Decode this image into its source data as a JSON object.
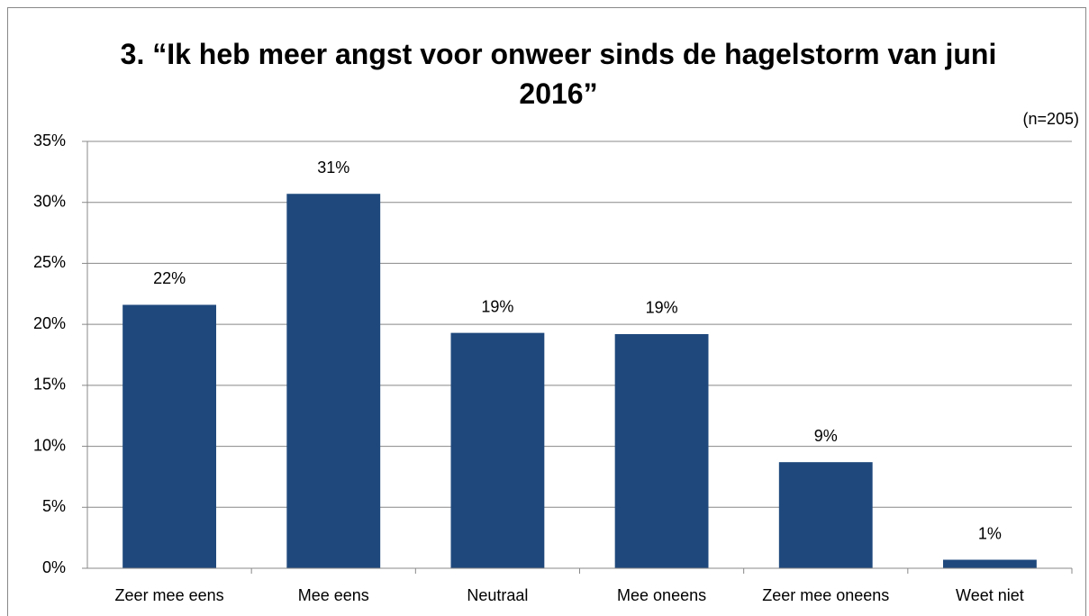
{
  "chart_data": {
    "type": "bar",
    "title": "3. “Ik heb meer angst voor onweer sinds de hagelstorm van juni 2016”",
    "annotation": "(n=205)",
    "categories": [
      "Zeer mee eens",
      "Mee eens",
      "Neutraal",
      "Mee oneens",
      "Zeer mee oneens",
      "Weet niet"
    ],
    "values": [
      21.6,
      30.7,
      19.3,
      19.2,
      8.7,
      0.7
    ],
    "value_labels": [
      "22%",
      "31%",
      "19%",
      "19%",
      "9%",
      "1%"
    ],
    "color": "#1f497d",
    "ylim": [
      0,
      35
    ],
    "yticks": [
      {
        "value": 0,
        "label": "0%"
      },
      {
        "value": 5,
        "label": "5%"
      },
      {
        "value": 10,
        "label": "10%"
      },
      {
        "value": 15,
        "label": "15%"
      },
      {
        "value": 20,
        "label": "20%"
      },
      {
        "value": 25,
        "label": "25%"
      },
      {
        "value": 30,
        "label": "30%"
      },
      {
        "value": 35,
        "label": "35%"
      }
    ],
    "grid": true
  }
}
